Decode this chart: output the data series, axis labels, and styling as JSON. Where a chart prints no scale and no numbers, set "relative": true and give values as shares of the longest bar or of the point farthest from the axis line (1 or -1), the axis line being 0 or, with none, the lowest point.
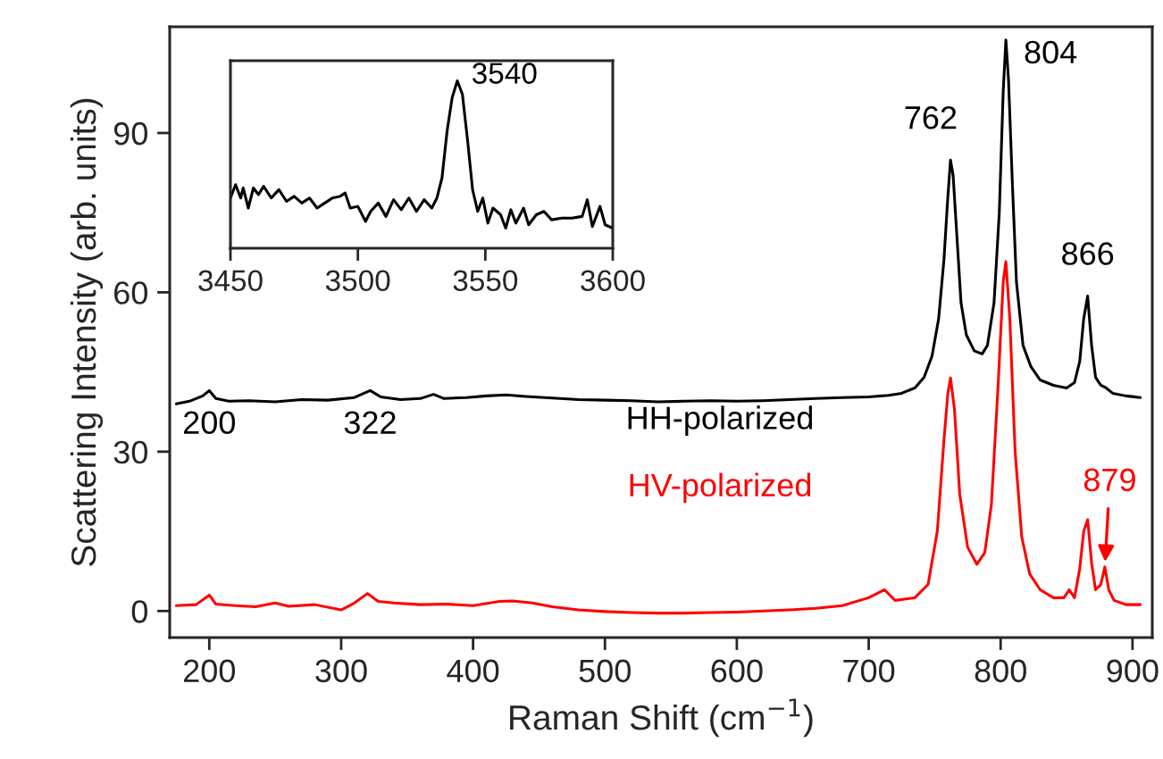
{
  "chart_data": [
    {
      "type": "line",
      "xlabel": "Raman Shift (cm$^{−1}$)",
      "ylabel": "Scattering Intensity (arb. units)",
      "xlim": [
        170,
        915
      ],
      "xticks": [
        200,
        300,
        400,
        500,
        600,
        700,
        800,
        900
      ],
      "ylim": [
        -5,
        110
      ],
      "yticks": [
        0,
        30,
        60,
        90
      ],
      "grid": false,
      "legend": false,
      "series": [
        {
          "name": "HH-polarized",
          "color": "#000000",
          "x": [
            175,
            185,
            195,
            200,
            205,
            215,
            230,
            250,
            270,
            290,
            310,
            322,
            330,
            345,
            360,
            370,
            378,
            395,
            410,
            425,
            440,
            460,
            480,
            500,
            520,
            540,
            560,
            580,
            600,
            620,
            640,
            660,
            680,
            700,
            715,
            725,
            735,
            742,
            748,
            753,
            757,
            760,
            762,
            764,
            767,
            770,
            774,
            780,
            786,
            790,
            795,
            799,
            802,
            804,
            806,
            809,
            812,
            817,
            823,
            830,
            840,
            850,
            856,
            860,
            863,
            866,
            869,
            872,
            876,
            880,
            885,
            895,
            906
          ],
          "values": [
            39,
            39.5,
            40.5,
            41.5,
            40,
            39.5,
            39.6,
            39.4,
            39.8,
            39.7,
            40.2,
            41.5,
            40.3,
            39.8,
            40,
            40.8,
            40,
            40.2,
            40.5,
            40.7,
            40.4,
            40.1,
            39.8,
            39.7,
            39.6,
            39.4,
            39.5,
            39.6,
            39.5,
            39.6,
            39.8,
            40,
            40.2,
            40.3,
            40.6,
            41,
            42,
            44,
            48,
            55,
            66,
            78,
            84.9,
            82,
            70,
            58,
            52,
            49,
            48.4,
            50,
            58,
            75,
            98,
            107.5,
            100,
            80,
            62,
            50,
            46,
            43.5,
            42.5,
            42,
            43,
            47,
            55,
            59.3,
            50,
            44,
            42.5,
            42,
            41,
            40.5,
            40.2
          ]
        },
        {
          "name": "HV-polarized",
          "color": "#ff0000",
          "x": [
            175,
            190,
            200,
            205,
            220,
            235,
            250,
            260,
            280,
            300,
            310,
            320,
            328,
            340,
            360,
            380,
            400,
            420,
            430,
            445,
            460,
            480,
            500,
            520,
            540,
            560,
            580,
            600,
            620,
            640,
            660,
            680,
            700,
            712,
            720,
            735,
            745,
            752,
            757,
            760,
            762,
            765,
            769,
            775,
            782,
            788,
            793,
            798,
            802,
            804,
            807,
            811,
            816,
            822,
            830,
            840,
            848,
            852,
            856,
            860,
            863,
            866,
            869,
            872,
            876,
            879,
            882,
            886,
            895,
            906
          ],
          "values": [
            1,
            1.2,
            3,
            1.3,
            1,
            0.8,
            1.5,
            0.9,
            1.2,
            0.2,
            1.5,
            3.3,
            1.8,
            1.5,
            1.2,
            1.3,
            1,
            1.8,
            1.9,
            1.5,
            0.8,
            0.2,
            -0.1,
            -0.3,
            -0.4,
            -0.4,
            -0.3,
            -0.2,
            0,
            0.2,
            0.5,
            1,
            2.5,
            4,
            2,
            2.5,
            5,
            15,
            32,
            41,
            43.9,
            38,
            22,
            12,
            8.8,
            11,
            20,
            42,
            62,
            65.8,
            55,
            30,
            14,
            7,
            4,
            2.5,
            2.5,
            4,
            2.5,
            8,
            15,
            17.2,
            9,
            4,
            5,
            8.3,
            4,
            2,
            1.2,
            1.2
          ]
        }
      ],
      "annotations": [
        {
          "text": "200",
          "x": 200,
          "y": 41.5
        },
        {
          "text": "322",
          "x": 322,
          "y": 41.5
        },
        {
          "text": "762",
          "x": 762,
          "y": 84.9
        },
        {
          "text": "804",
          "x": 804,
          "y": 107.5
        },
        {
          "text": "866",
          "x": 866,
          "y": 59.3
        },
        {
          "text": "879",
          "x": 879,
          "y": 8.3
        }
      ]
    },
    {
      "type": "line",
      "relative": true,
      "xlim": [
        3450,
        3600
      ],
      "xticks": [
        3450,
        3500,
        3550,
        3600
      ],
      "tick_labels": "x",
      "grid": false,
      "legend": false,
      "series": [
        {
          "color": "#000000",
          "x": [
            3450,
            3452,
            3454,
            3455,
            3457,
            3459,
            3461,
            3463,
            3466,
            3469,
            3472,
            3475,
            3478,
            3481,
            3484,
            3487,
            3490,
            3493,
            3495,
            3497,
            3500,
            3503,
            3505,
            3508,
            3511,
            3514,
            3517,
            3520,
            3523,
            3526,
            3529,
            3531,
            3533,
            3535,
            3537,
            3539,
            3541,
            3543,
            3545,
            3547,
            3549,
            3551,
            3553,
            3556,
            3558,
            3560,
            3562,
            3565,
            3567,
            3570,
            3573,
            3576,
            3580,
            3584,
            3588,
            3590,
            3592,
            3595,
            3597,
            3600
          ],
          "values": [
            0.3,
            0.38,
            0.3,
            0.36,
            0.24,
            0.36,
            0.32,
            0.37,
            0.3,
            0.35,
            0.28,
            0.31,
            0.27,
            0.3,
            0.24,
            0.27,
            0.3,
            0.31,
            0.33,
            0.24,
            0.25,
            0.16,
            0.22,
            0.27,
            0.19,
            0.29,
            0.23,
            0.3,
            0.22,
            0.29,
            0.24,
            0.3,
            0.42,
            0.7,
            0.9,
            1.0,
            0.92,
            0.65,
            0.35,
            0.22,
            0.3,
            0.15,
            0.24,
            0.2,
            0.12,
            0.23,
            0.15,
            0.24,
            0.14,
            0.2,
            0.22,
            0.17,
            0.18,
            0.18,
            0.19,
            0.29,
            0.13,
            0.25,
            0.14,
            0.12
          ]
        }
      ],
      "annotations": [
        {
          "text": "3540",
          "x": 3540,
          "y": 1.0
        }
      ]
    }
  ]
}
